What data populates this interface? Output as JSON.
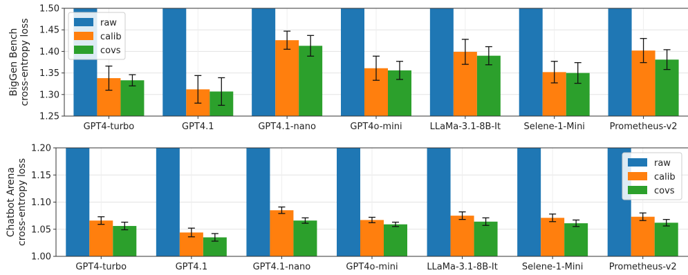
{
  "chart_data": [
    {
      "type": "bar",
      "ylabel_lines": [
        "BigGen Bench",
        "cross-entropy loss"
      ],
      "ylim": [
        1.25,
        1.5
      ],
      "yticks": [
        1.25,
        1.3,
        1.35,
        1.4,
        1.45,
        1.5
      ],
      "ytick_labels": [
        "1.25",
        "1.30",
        "1.35",
        "1.40",
        "1.45",
        "1.50"
      ],
      "grid": true,
      "legend_position": "top-left",
      "categories": [
        "GPT4-turbo",
        "GPT4.1",
        "GPT4.1-nano",
        "GPT4o-mini",
        "LLaMa-3.1-8B-It",
        "Selene-1-Mini",
        "Prometheus-v2"
      ],
      "series": [
        {
          "name": "raw",
          "color": "#1f77b4",
          "values": [
            1.5,
            1.5,
            1.5,
            1.5,
            1.5,
            1.5,
            1.5
          ],
          "errors": [
            0,
            0,
            0,
            0,
            0,
            0,
            0
          ]
        },
        {
          "name": "calib",
          "color": "#ff7f0e",
          "values": [
            1.338,
            1.312,
            1.426,
            1.361,
            1.399,
            1.352,
            1.402
          ],
          "errors": [
            0.028,
            0.032,
            0.021,
            0.028,
            0.029,
            0.025,
            0.028
          ]
        },
        {
          "name": "covs",
          "color": "#2ca02c",
          "values": [
            1.333,
            1.307,
            1.413,
            1.356,
            1.39,
            1.35,
            1.381
          ],
          "errors": [
            0.013,
            0.032,
            0.024,
            0.021,
            0.021,
            0.024,
            0.023
          ]
        }
      ]
    },
    {
      "type": "bar",
      "ylabel_lines": [
        "Chatbot Arena",
        "cross-entropy loss"
      ],
      "ylim": [
        1.0,
        1.2
      ],
      "yticks": [
        1.0,
        1.05,
        1.1,
        1.15,
        1.2
      ],
      "ytick_labels": [
        "1.00",
        "1.05",
        "1.10",
        "1.15",
        "1.20"
      ],
      "grid": true,
      "legend_position": "top-right",
      "categories": [
        "GPT4-turbo",
        "GPT4.1",
        "GPT4.1-nano",
        "GPT4o-mini",
        "LLaMa-3.1-8B-It",
        "Selene-1-Mini",
        "Prometheus-v2"
      ],
      "series": [
        {
          "name": "raw",
          "color": "#1f77b4",
          "values": [
            1.2,
            1.2,
            1.2,
            1.2,
            1.2,
            1.2,
            1.2
          ],
          "errors": [
            0,
            0,
            0,
            0,
            0,
            0,
            0
          ]
        },
        {
          "name": "calib",
          "color": "#ff7f0e",
          "values": [
            1.066,
            1.044,
            1.085,
            1.067,
            1.075,
            1.071,
            1.073
          ],
          "errors": [
            0.007,
            0.008,
            0.006,
            0.005,
            0.007,
            0.007,
            0.007
          ]
        },
        {
          "name": "covs",
          "color": "#2ca02c",
          "values": [
            1.056,
            1.035,
            1.066,
            1.059,
            1.064,
            1.061,
            1.062
          ],
          "errors": [
            0.007,
            0.007,
            0.005,
            0.004,
            0.007,
            0.006,
            0.006
          ]
        }
      ]
    }
  ]
}
